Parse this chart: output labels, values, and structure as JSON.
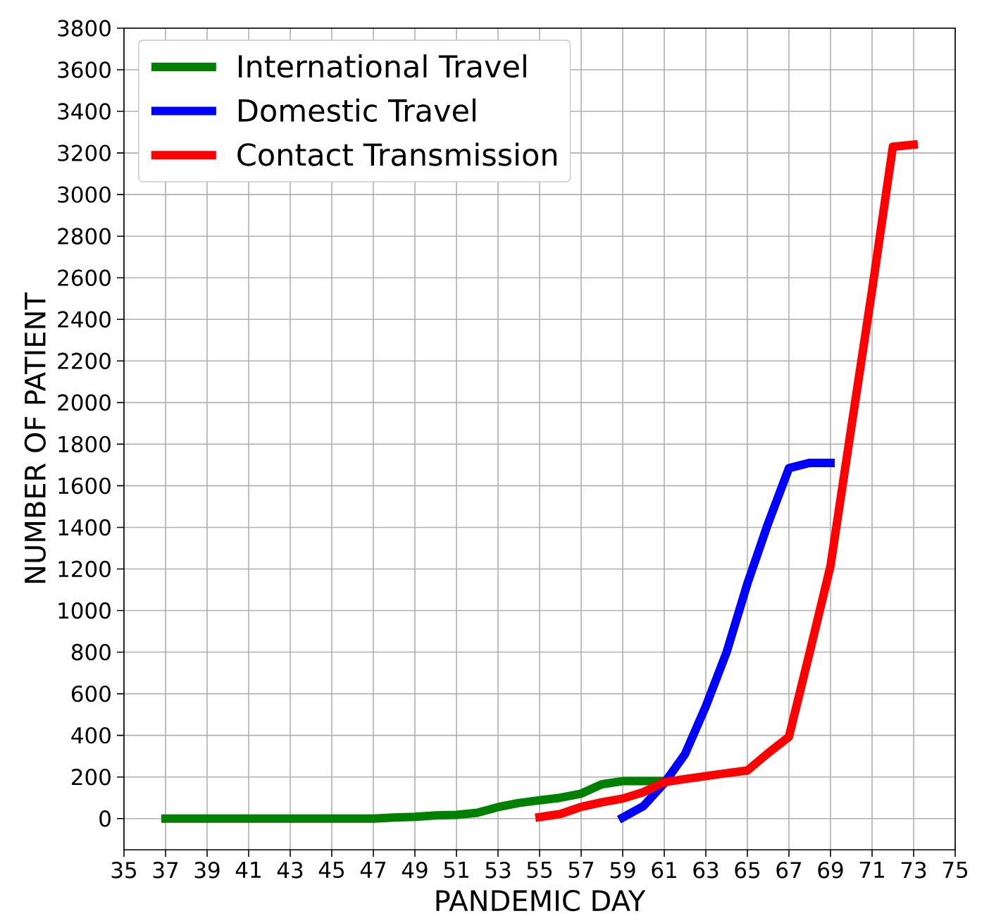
{
  "chart_data": {
    "type": "line",
    "xlabel": "PANDEMIC DAY",
    "ylabel": "NUMBER OF PATIENT",
    "xlim": [
      35,
      75
    ],
    "ylim": [
      -150,
      3800
    ],
    "xticks": [
      35,
      37,
      39,
      41,
      43,
      45,
      47,
      49,
      51,
      53,
      55,
      57,
      59,
      61,
      63,
      65,
      67,
      69,
      71,
      73,
      75
    ],
    "yticks": [
      0,
      200,
      400,
      600,
      800,
      1000,
      1200,
      1400,
      1600,
      1800,
      2000,
      2200,
      2400,
      2600,
      2800,
      3000,
      3200,
      3400,
      3600,
      3800
    ],
    "grid": true,
    "legend": "top left",
    "line_style": "solid",
    "series": [
      {
        "name": "International Travel",
        "color": "#008000",
        "x": [
          37,
          38,
          39,
          40,
          41,
          42,
          43,
          44,
          45,
          46,
          47,
          48,
          49,
          50,
          51,
          52,
          53,
          54,
          55,
          56,
          57,
          58,
          59,
          60,
          61
        ],
        "values": [
          0,
          0,
          0,
          0,
          0,
          0,
          0,
          0,
          0,
          0,
          0,
          5,
          8,
          15,
          18,
          28,
          55,
          75,
          88,
          100,
          120,
          165,
          180,
          180,
          180
        ]
      },
      {
        "name": "Domestic Travel",
        "color": "#0000ff",
        "x": [
          59,
          60,
          61,
          62,
          63,
          64,
          65,
          66,
          67,
          68,
          69
        ],
        "values": [
          5,
          60,
          170,
          310,
          540,
          800,
          1130,
          1420,
          1685,
          1710,
          1710
        ]
      },
      {
        "name": "Contact Transmission",
        "color": "#ff0000",
        "x": [
          55,
          56,
          57,
          58,
          59,
          60,
          61,
          62,
          63,
          64,
          65,
          66,
          67,
          68,
          69,
          70,
          71,
          72,
          73
        ],
        "values": [
          7,
          22,
          56,
          78,
          96,
          127,
          175,
          190,
          204,
          218,
          231,
          315,
          393,
          800,
          1215,
          1880,
          2540,
          3230,
          3240
        ]
      }
    ]
  }
}
